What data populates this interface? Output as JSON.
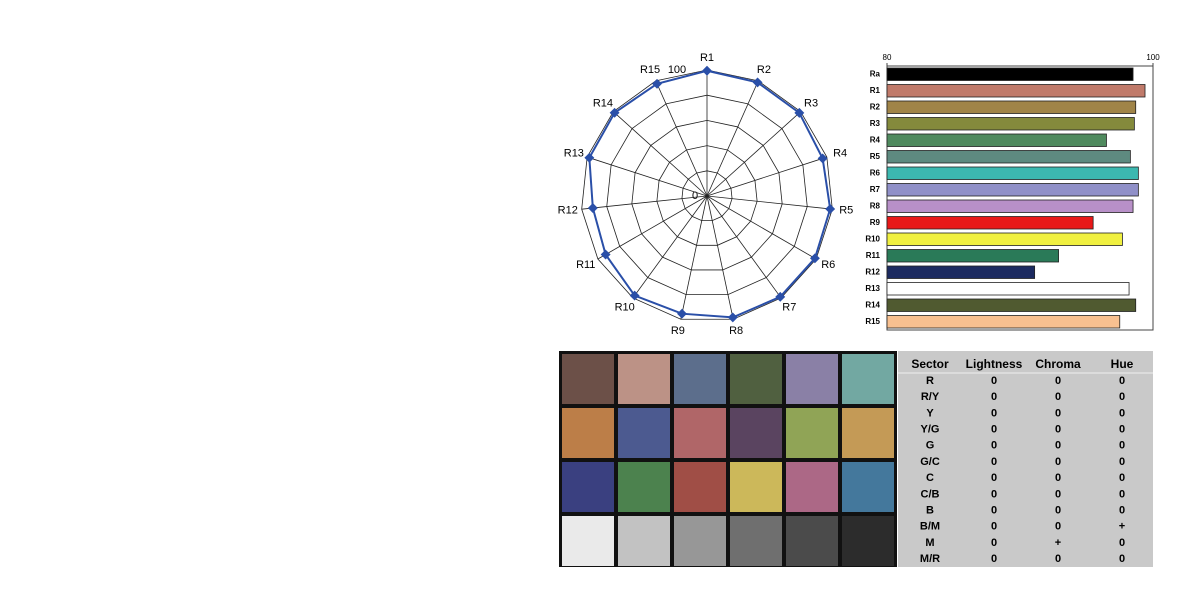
{
  "chart_data": [
    {
      "type": "radar",
      "categories": [
        "R1",
        "R2",
        "R3",
        "R4",
        "R5",
        "R6",
        "R7",
        "R8",
        "R9",
        "R10",
        "R11",
        "R12",
        "R13",
        "R14",
        "R15"
      ],
      "values": [
        99.4,
        98.7,
        98.6,
        96.5,
        98.3,
        98.9,
        98.9,
        98.5,
        95.5,
        97.7,
        92.9,
        91.1,
        98.2,
        98.7,
        97.5
      ],
      "color": "#2a4fa8",
      "rlim": [
        0,
        100
      ],
      "rticks": [
        0,
        100
      ]
    },
    {
      "type": "hbar",
      "categories": [
        "Ra",
        "R1",
        "R2",
        "R3",
        "R4",
        "R5",
        "R6",
        "R7",
        "R8",
        "R9",
        "R10",
        "R11",
        "R12",
        "R13",
        "R14",
        "R15"
      ],
      "values": [
        98.5,
        99.4,
        98.7,
        98.6,
        96.5,
        98.3,
        98.9,
        98.9,
        98.5,
        95.5,
        97.7,
        92.9,
        91.1,
        98.2,
        98.7,
        97.5
      ],
      "colors": [
        "#000000",
        "#c07a6a",
        "#a08448",
        "#848a3c",
        "#4f8a5e",
        "#5e8a80",
        "#3cb8b0",
        "#9090c8",
        "#b890c8",
        "#e81818",
        "#f0f040",
        "#2a7a58",
        "#1c2a60",
        "#ffffff",
        "#505a30",
        "#f8c090"
      ],
      "xlim": [
        80,
        100
      ],
      "xticks": [
        80,
        100
      ]
    }
  ],
  "color_checker": {
    "colors": [
      "#6c5048",
      "#bc9286",
      "#5c6e8c",
      "#506040",
      "#8a80a6",
      "#72a8a2",
      "#bc7e48",
      "#4c5a90",
      "#b06668",
      "#5a4460",
      "#90a456",
      "#c49a56",
      "#3a4080",
      "#4c824e",
      "#a04e46",
      "#ccb85a",
      "#ac6886",
      "#44789c",
      "#eaeaea",
      "#c2c2c2",
      "#979797",
      "#6f6f6f",
      "#4b4b4b",
      "#2c2c2c"
    ]
  },
  "table": {
    "header": [
      "Sector",
      "Lightness",
      "Chroma",
      "Hue"
    ],
    "rows": [
      [
        "R",
        "0",
        "0",
        "0"
      ],
      [
        "R/Y",
        "0",
        "0",
        "0"
      ],
      [
        "Y",
        "0",
        "0",
        "0"
      ],
      [
        "Y/G",
        "0",
        "0",
        "0"
      ],
      [
        "G",
        "0",
        "0",
        "0"
      ],
      [
        "G/C",
        "0",
        "0",
        "0"
      ],
      [
        "C",
        "0",
        "0",
        "0"
      ],
      [
        "C/B",
        "0",
        "0",
        "0"
      ],
      [
        "B",
        "0",
        "0",
        "0"
      ],
      [
        "B/M",
        "0",
        "0",
        "+"
      ],
      [
        "M",
        "0",
        "+",
        "0"
      ],
      [
        "M/R",
        "0",
        "0",
        "0"
      ]
    ]
  }
}
